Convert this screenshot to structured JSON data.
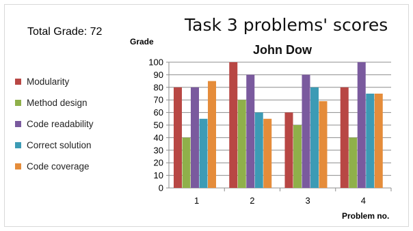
{
  "total_grade": "Total Grade: 72",
  "chart_data": {
    "type": "bar",
    "title": "Task 3 problems' scores",
    "subtitle": "John Dow",
    "ylabel": "Grade",
    "xlabel": "Problem no.",
    "categories": [
      "1",
      "2",
      "3",
      "4"
    ],
    "ylim": [
      0,
      100
    ],
    "yticks": [
      "0",
      "10",
      "20",
      "30",
      "40",
      "50",
      "60",
      "70",
      "80",
      "90",
      "100"
    ],
    "grid": true,
    "legend_position": "left",
    "series": [
      {
        "name": "Modularity",
        "color": "#b84744",
        "values": [
          80,
          100,
          60,
          80
        ]
      },
      {
        "name": "Method design",
        "color": "#8fb04a",
        "values": [
          40,
          70,
          50,
          40
        ]
      },
      {
        "name": "Code readability",
        "color": "#7a5a9e",
        "values": [
          80,
          90,
          90,
          100
        ]
      },
      {
        "name": "Correct solution",
        "color": "#3c9bb5",
        "values": [
          55,
          60,
          80,
          75
        ]
      },
      {
        "name": "Code coverage",
        "color": "#e58c3a",
        "values": [
          85,
          55,
          69,
          75
        ]
      }
    ]
  }
}
